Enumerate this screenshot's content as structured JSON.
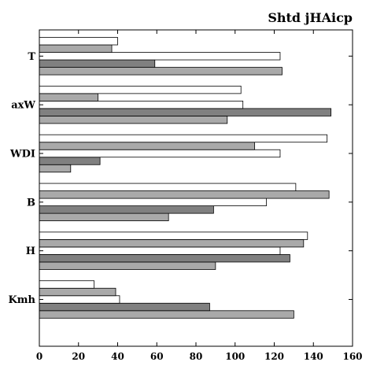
{
  "chart_data": {
    "type": "bar",
    "orientation": "horizontal",
    "title": "Shtd jHAicp",
    "xlabel": "",
    "ylabel": "",
    "xlim": [
      0,
      160
    ],
    "xticks": [
      0,
      20,
      40,
      60,
      80,
      100,
      120,
      140,
      160
    ],
    "categories": [
      "Kmh",
      "H",
      "B",
      "WDI",
      "axW",
      "T"
    ],
    "series": [
      {
        "color": "#a9a9a9",
        "values": [
          130,
          90,
          66,
          16,
          96,
          124
        ]
      },
      {
        "color": "#808080",
        "values": [
          87,
          128,
          89,
          31,
          149,
          59
        ]
      },
      {
        "color": "#ffffff",
        "values": [
          41,
          123,
          116,
          123,
          104,
          123
        ]
      },
      {
        "color": "#a9a9a9",
        "values": [
          39,
          135,
          148,
          110,
          30,
          37
        ]
      },
      {
        "color": "#ffffff",
        "values": [
          28,
          137,
          131,
          147,
          103,
          40
        ]
      }
    ],
    "grid": false,
    "legend": "none"
  }
}
